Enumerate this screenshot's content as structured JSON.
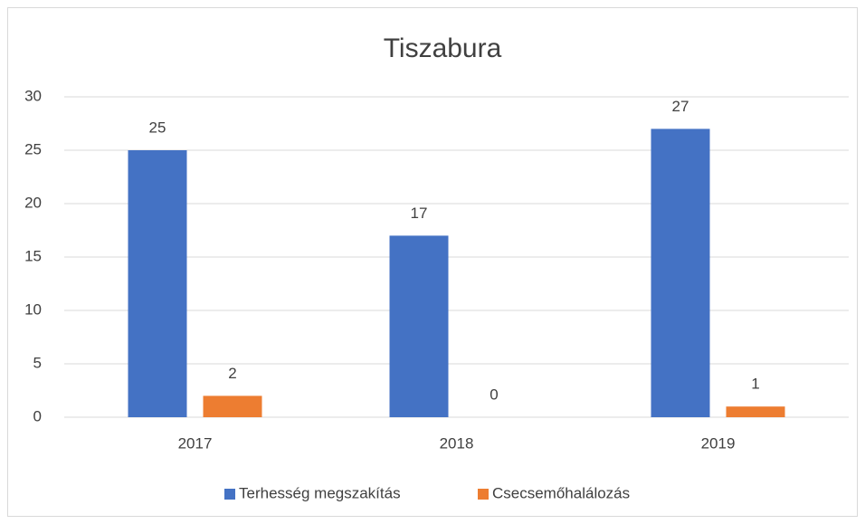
{
  "chart_data": {
    "type": "bar",
    "title": "Tiszabura",
    "categories": [
      "2017",
      "2018",
      "2019"
    ],
    "series": [
      {
        "name": "Terhesség megszakítás",
        "color": "#4472c4",
        "values": [
          25,
          17,
          27
        ]
      },
      {
        "name": "Csecsemőhalálozás",
        "color": "#ed7d31",
        "values": [
          2,
          0,
          1
        ]
      }
    ],
    "ylim": [
      0,
      30
    ],
    "yticks": [
      0,
      5,
      10,
      15,
      20,
      25,
      30
    ],
    "grid": true,
    "legend": "bottom"
  }
}
